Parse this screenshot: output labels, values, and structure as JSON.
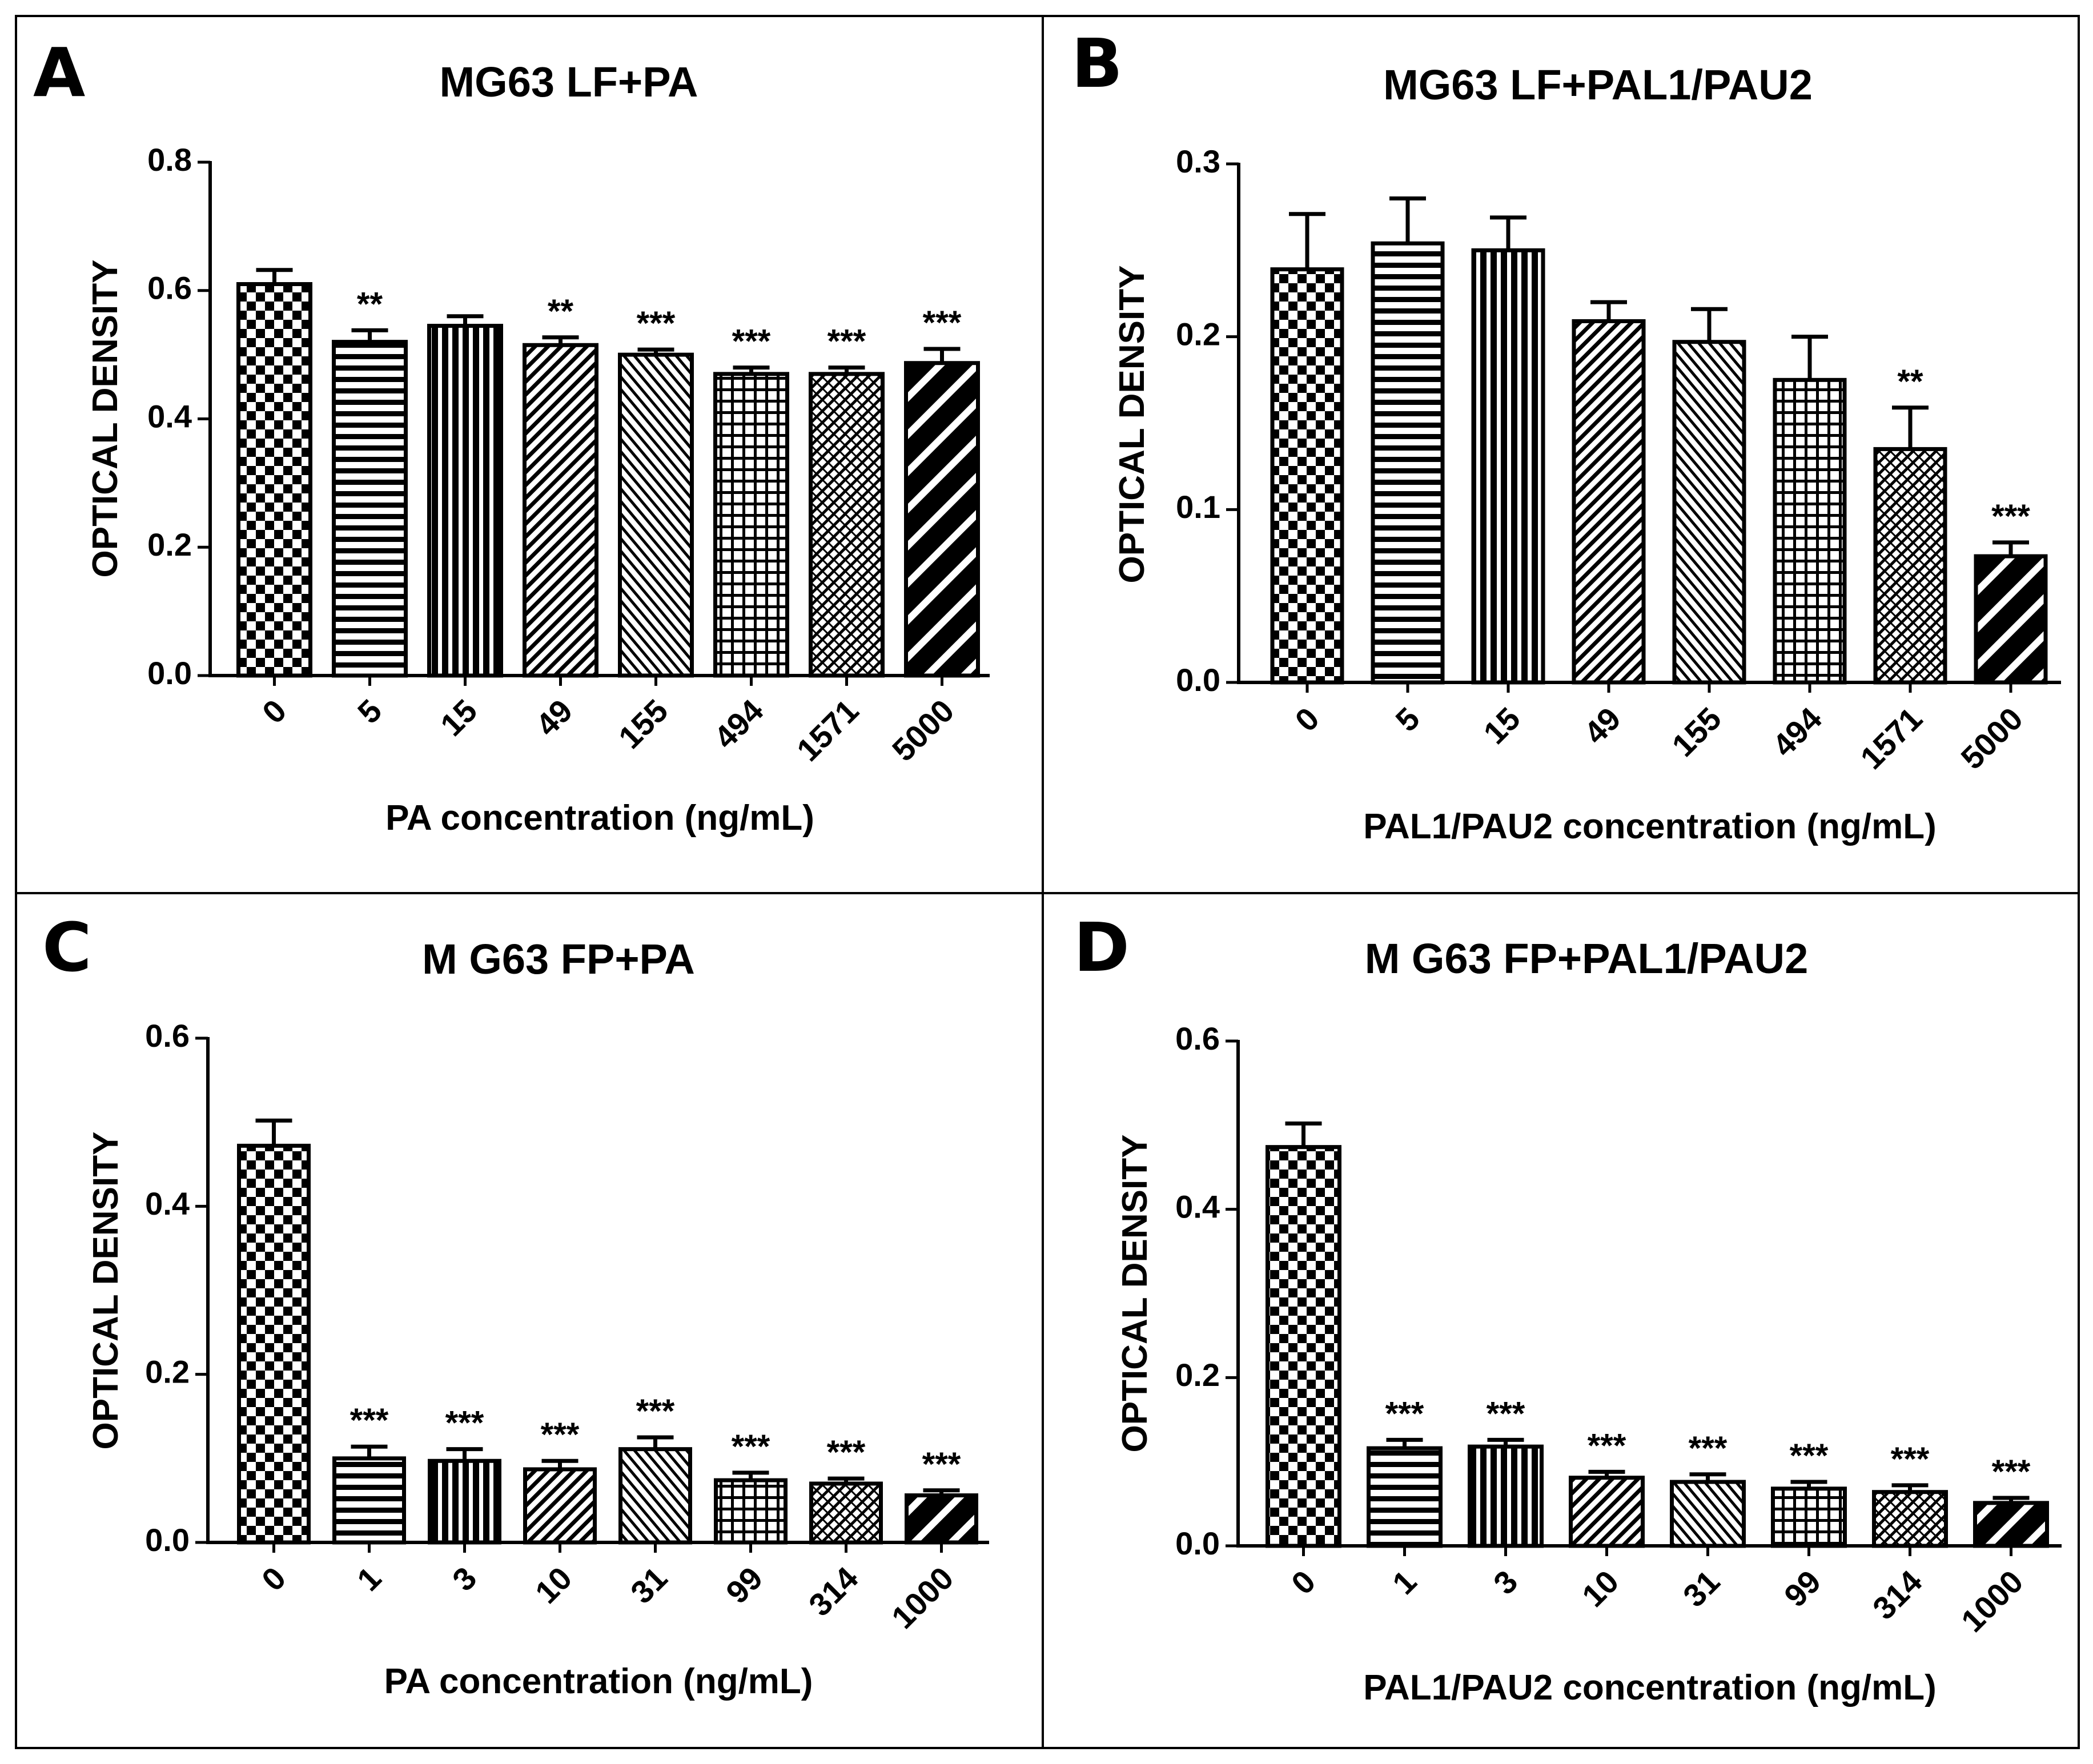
{
  "figure": {
    "panels": [
      {
        "letter": "A",
        "title": "MG63 LF+PA"
      },
      {
        "letter": "B",
        "title": "MG63 LF+PAL1/PAU2"
      },
      {
        "letter": "C",
        "title": "M G63 FP+PA"
      },
      {
        "letter": "D",
        "title": "M G63 FP+PAL1/PAU2"
      }
    ]
  },
  "chart_data": [
    {
      "type": "bar",
      "title": "MG63 LF+PA",
      "xlabel": "PA concentration (ng/mL)",
      "ylabel": "OPTICAL DENSITY",
      "categories": [
        "0",
        "5",
        "15",
        "49",
        "155",
        "494",
        "1571",
        "5000"
      ],
      "values": [
        0.61,
        0.52,
        0.545,
        0.515,
        0.5,
        0.47,
        0.47,
        0.487
      ],
      "errors": [
        0.022,
        0.018,
        0.015,
        0.012,
        0.008,
        0.01,
        0.01,
        0.022
      ],
      "significance": [
        "",
        "**",
        "",
        "**",
        "***",
        "***",
        "***",
        "***"
      ],
      "ylim": [
        0,
        0.8
      ],
      "yticks": [
        "0.0",
        "0.2",
        "0.4",
        "0.6",
        "0.8"
      ],
      "patterns": [
        "checker",
        "hstripe",
        "vstripe",
        "diag-fine",
        "diag-back",
        "grid",
        "crosshatch",
        "diag-wide"
      ],
      "grid": false
    },
    {
      "type": "bar",
      "title": "MG63 LF+PAL1/PAU2",
      "xlabel": "PAL1/PAU2 concentration (ng/mL)",
      "ylabel": "OPTICAL DENSITY",
      "categories": [
        "0",
        "5",
        "15",
        "49",
        "155",
        "494",
        "1571",
        "5000"
      ],
      "values": [
        0.239,
        0.254,
        0.25,
        0.209,
        0.197,
        0.175,
        0.135,
        0.073
      ],
      "errors": [
        0.032,
        0.026,
        0.019,
        0.011,
        0.019,
        0.025,
        0.024,
        0.008
      ],
      "significance": [
        "",
        "",
        "",
        "",
        "",
        "",
        "**",
        "***"
      ],
      "ylim": [
        0,
        0.3
      ],
      "yticks": [
        "0.0",
        "0.1",
        "0.2",
        "0.3"
      ],
      "patterns": [
        "checker",
        "hstripe",
        "vstripe",
        "diag-fine",
        "diag-back",
        "grid",
        "crosshatch",
        "diag-wide"
      ],
      "grid": false
    },
    {
      "type": "bar",
      "title": "M G63 FP+PA",
      "xlabel": "PA concentration (ng/mL)",
      "ylabel": "OPTICAL DENSITY",
      "categories": [
        "0",
        "1",
        "3",
        "10",
        "31",
        "99",
        "314",
        "1000"
      ],
      "values": [
        0.472,
        0.1,
        0.097,
        0.087,
        0.111,
        0.074,
        0.07,
        0.056
      ],
      "errors": [
        0.03,
        0.014,
        0.014,
        0.01,
        0.014,
        0.009,
        0.006,
        0.006
      ],
      "significance": [
        "",
        "***",
        "***",
        "***",
        "***",
        "***",
        "***",
        "***"
      ],
      "ylim": [
        0,
        0.6
      ],
      "yticks": [
        "0.0",
        "0.2",
        "0.4",
        "0.6"
      ],
      "patterns": [
        "checker",
        "hstripe",
        "vstripe",
        "diag-fine",
        "diag-back",
        "grid",
        "crosshatch",
        "diag-wide"
      ],
      "grid": false
    },
    {
      "type": "bar",
      "title": "M G63 FP+PAL1/PAU2",
      "xlabel": "PAL1/PAU2 concentration (ng/mL)",
      "ylabel": "OPTICAL DENSITY",
      "categories": [
        "0",
        "1",
        "3",
        "10",
        "31",
        "99",
        "314",
        "1000"
      ],
      "values": [
        0.474,
        0.116,
        0.118,
        0.081,
        0.076,
        0.068,
        0.064,
        0.051
      ],
      "errors": [
        0.028,
        0.01,
        0.008,
        0.007,
        0.009,
        0.008,
        0.008,
        0.006
      ],
      "significance": [
        "",
        "***",
        "***",
        "***",
        "***",
        "***",
        "***",
        "***"
      ],
      "ylim": [
        0,
        0.6
      ],
      "yticks": [
        "0.0",
        "0.2",
        "0.4",
        "0.6"
      ],
      "patterns": [
        "checker",
        "hstripe",
        "vstripe",
        "diag-fine",
        "diag-back",
        "grid",
        "crosshatch",
        "diag-wide"
      ],
      "grid": false
    }
  ]
}
